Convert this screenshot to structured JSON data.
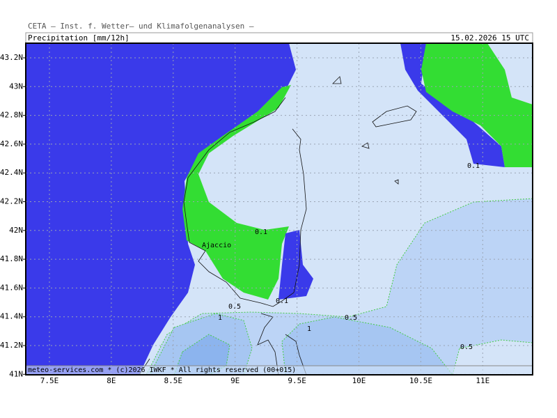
{
  "header": {
    "institute": "CETA – Inst. f. Wetter– und Klimafolgenanalysen –",
    "product": "Precipitation [mm/12h]",
    "valid_time": "15.02.2026 15 UTC"
  },
  "map": {
    "lat_labels": [
      "43.2N",
      "43N",
      "42.8N",
      "42.6N",
      "42.4N",
      "42.2N",
      "42N",
      "41.8N",
      "41.6N",
      "41.4N",
      "41.2N",
      "41N"
    ],
    "lon_labels": [
      "7.5E",
      "8E",
      "8.5E",
      "9E",
      "9.5E",
      "10E",
      "10.5E",
      "11E"
    ],
    "contour_labels": [
      "0.1",
      "0.1",
      "0.1",
      "0.5",
      "0.5",
      "0.5",
      "1",
      "1"
    ],
    "place_labels": [
      "Ajaccio"
    ]
  },
  "footer": "meteo-services.com * (c)2026 IWKF * All rights reserved (00+015)"
}
